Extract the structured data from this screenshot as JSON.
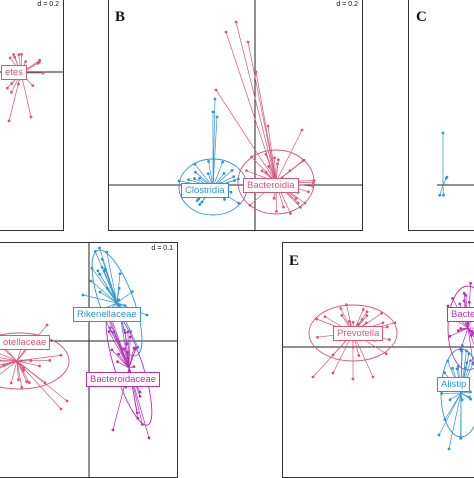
{
  "panels": {
    "a": {
      "d": "d = 0.2",
      "labels": [
        "etes"
      ],
      "colors": [
        "#d9557a"
      ]
    },
    "b": {
      "letter": "B",
      "d": "d = 0.2",
      "labels": [
        "Clostridia",
        "Bacteroidia"
      ],
      "colors": [
        "#2e96d0",
        "#d9557a"
      ]
    },
    "c": {
      "letter": "C"
    },
    "d": {
      "d": "d = 0.1",
      "labels": [
        "Rikenellaceae",
        "otellaceae",
        "Bacteroidaceae"
      ],
      "colors": [
        "#2e96d0",
        "#d9557a",
        "#b82fb8"
      ]
    },
    "e": {
      "letter": "E",
      "labels": [
        "Prevotella",
        "Bacte",
        "Alistip"
      ],
      "colors": [
        "#d9557a",
        "#b82fb8",
        "#2e96d0"
      ]
    }
  }
}
